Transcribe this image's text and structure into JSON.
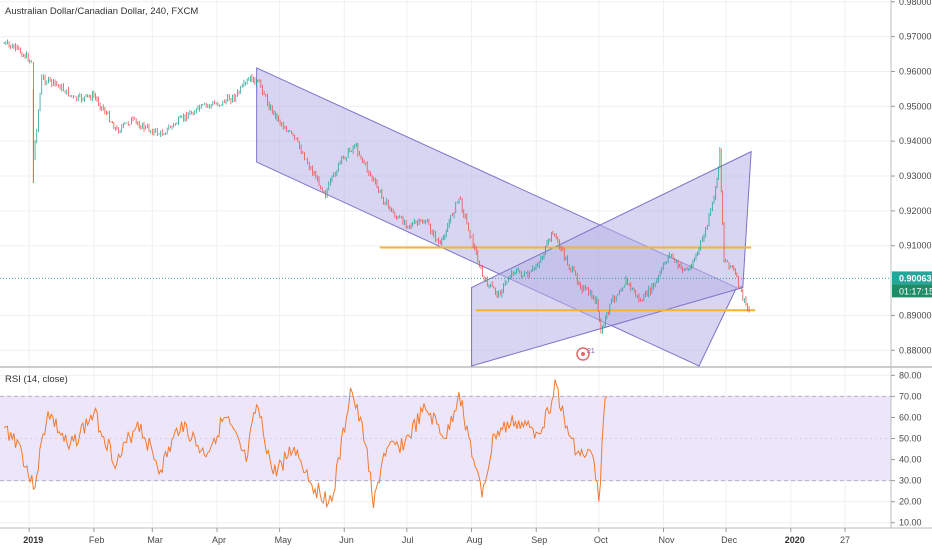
{
  "header": {
    "symbol_title": "Australian Dollar/Canadian Dollar, 240, FXCM",
    "rsi_title": "RSI (14, close)"
  },
  "price_panel": {
    "last_price": "0.90063",
    "countdown": "01:17:15",
    "event_badge": "21"
  },
  "colors": {
    "candle_up": "#26a69a",
    "candle_down": "#ef5350",
    "price_line": "#26a69a",
    "channel_fill": "#b7b3e6",
    "channel_stroke": "#7b74c9",
    "horizontal_level": "#f5b62a",
    "rsi_line": "#f27a2e",
    "rsi_band": "#ede6fb",
    "countdown_bg": "#1e8c66"
  },
  "chart_data": [
    {
      "type": "candlestick",
      "title": "Australian Dollar/Canadian Dollar, 240, FXCM",
      "x_axis_labels": [
        "2019",
        "Feb",
        "Mar",
        "Apr",
        "May",
        "Jun",
        "Jul",
        "Aug",
        "Sep",
        "Oct",
        "Nov",
        "Dec",
        "2020",
        "27"
      ],
      "y_axis_labels": [
        "0.98000",
        "0.97000",
        "0.96000",
        "0.95000",
        "0.94000",
        "0.93000",
        "0.92000",
        "0.91000",
        "0.89000",
        "0.88000"
      ],
      "ylim": [
        0.8755,
        0.9805
      ],
      "path_points": [
        [
          "2018-12-20",
          0.968
        ],
        [
          "2018-12-27",
          0.966
        ],
        [
          "2019-01-02",
          0.963
        ],
        [
          "2019-01-03",
          0.935
        ],
        [
          "2019-01-07",
          0.958
        ],
        [
          "2019-01-15",
          0.956
        ],
        [
          "2019-01-23",
          0.952
        ],
        [
          "2019-02-01",
          0.953
        ],
        [
          "2019-02-07",
          0.948
        ],
        [
          "2019-02-12",
          0.943
        ],
        [
          "2019-02-19",
          0.946
        ],
        [
          "2019-02-25",
          0.944
        ],
        [
          "2019-03-05",
          0.942
        ],
        [
          "2019-03-12",
          0.945
        ],
        [
          "2019-03-19",
          0.948
        ],
        [
          "2019-03-26",
          0.95
        ],
        [
          "2019-04-03",
          0.951
        ],
        [
          "2019-04-10",
          0.953
        ],
        [
          "2019-04-17",
          0.958
        ],
        [
          "2019-04-22",
          0.956
        ],
        [
          "2019-04-26",
          0.95
        ],
        [
          "2019-05-02",
          0.945
        ],
        [
          "2019-05-09",
          0.94
        ],
        [
          "2019-05-16",
          0.932
        ],
        [
          "2019-05-23",
          0.925
        ],
        [
          "2019-05-30",
          0.934
        ],
        [
          "2019-06-06",
          0.939
        ],
        [
          "2019-06-12",
          0.932
        ],
        [
          "2019-06-19",
          0.924
        ],
        [
          "2019-06-26",
          0.918
        ],
        [
          "2019-07-03",
          0.916
        ],
        [
          "2019-07-10",
          0.917
        ],
        [
          "2019-07-17",
          0.91
        ],
        [
          "2019-07-22",
          0.918
        ],
        [
          "2019-07-26",
          0.924
        ],
        [
          "2019-08-01",
          0.912
        ],
        [
          "2019-08-07",
          0.9
        ],
        [
          "2019-08-14",
          0.896
        ],
        [
          "2019-08-21",
          0.903
        ],
        [
          "2019-08-28",
          0.901
        ],
        [
          "2019-09-04",
          0.907
        ],
        [
          "2019-09-09",
          0.914
        ],
        [
          "2019-09-16",
          0.905
        ],
        [
          "2019-09-23",
          0.898
        ],
        [
          "2019-09-30",
          0.894
        ],
        [
          "2019-10-02",
          0.885
        ],
        [
          "2019-10-07",
          0.894
        ],
        [
          "2019-10-14",
          0.9
        ],
        [
          "2019-10-21",
          0.894
        ],
        [
          "2019-10-28",
          0.899
        ],
        [
          "2019-11-04",
          0.908
        ],
        [
          "2019-11-08",
          0.904
        ],
        [
          "2019-11-13",
          0.903
        ],
        [
          "2019-11-18",
          0.909
        ],
        [
          "2019-11-22",
          0.916
        ],
        [
          "2019-11-26",
          0.926
        ],
        [
          "2019-11-28",
          0.937
        ],
        [
          "2019-11-30",
          0.906
        ],
        [
          "2019-12-04",
          0.904
        ],
        [
          "2019-12-09",
          0.895
        ],
        [
          "2019-12-12",
          0.891
        ]
      ],
      "annotations": {
        "descending_channel": {
          "upper": [
            [
              "2019-04-20",
              0.961
            ],
            [
              "2019-12-06",
              0.898
            ]
          ],
          "lower": [
            [
              "2019-04-20",
              0.934
            ],
            [
              "2019-11-18",
              0.874
            ]
          ]
        },
        "ascending_channel": {
          "upper": [
            [
              "2019-08-01",
              0.898
            ],
            [
              "2019-12-13",
              0.937
            ]
          ],
          "lower": [
            [
              "2019-08-01",
              0.835
            ],
            [
              "2019-12-09",
              0.898
            ]
          ]
        },
        "resistance_level": {
          "value": 0.9095,
          "from": "2019-06-18",
          "to": "2019-12-13"
        },
        "support_level": {
          "value": 0.8915,
          "from": "2019-08-03",
          "to": "2019-12-15"
        },
        "last_price_line": 0.90063
      }
    },
    {
      "type": "line",
      "title": "RSI (14, close)",
      "y_axis_labels": [
        "80.00",
        "70.00",
        "60.00",
        "50.00",
        "40.00",
        "30.00",
        "20.00",
        "10.00"
      ],
      "ylim": [
        7.5,
        83.5
      ],
      "band": [
        30,
        70
      ],
      "path_points": [
        [
          "2018-12-20",
          55
        ],
        [
          "2018-12-27",
          48
        ],
        [
          "2019-01-03",
          26
        ],
        [
          "2019-01-10",
          63
        ],
        [
          "2019-01-20",
          45
        ],
        [
          "2019-02-01",
          62
        ],
        [
          "2019-02-12",
          38
        ],
        [
          "2019-02-22",
          58
        ],
        [
          "2019-03-05",
          35
        ],
        [
          "2019-03-15",
          58
        ],
        [
          "2019-03-26",
          42
        ],
        [
          "2019-04-05",
          60
        ],
        [
          "2019-04-15",
          39
        ],
        [
          "2019-04-20",
          66
        ],
        [
          "2019-04-28",
          33
        ],
        [
          "2019-05-08",
          46
        ],
        [
          "2019-05-18",
          26
        ],
        [
          "2019-05-26",
          20
        ],
        [
          "2019-06-02",
          60
        ],
        [
          "2019-06-04",
          74
        ],
        [
          "2019-06-12",
          45
        ],
        [
          "2019-06-15",
          17
        ],
        [
          "2019-06-20",
          43
        ],
        [
          "2019-06-30",
          48
        ],
        [
          "2019-07-10",
          64
        ],
        [
          "2019-07-20",
          50
        ],
        [
          "2019-07-26",
          72
        ],
        [
          "2019-08-02",
          40
        ],
        [
          "2019-08-06",
          22
        ],
        [
          "2019-08-12",
          52
        ],
        [
          "2019-08-22",
          58
        ],
        [
          "2019-09-01",
          53
        ],
        [
          "2019-09-07",
          62
        ],
        [
          "2019-09-10",
          78
        ],
        [
          "2019-09-15",
          55
        ],
        [
          "2019-09-22",
          42
        ],
        [
          "2019-09-28",
          42
        ],
        [
          "2019-10-01",
          20
        ],
        [
          "2019-10-04",
          69
        ],
        [
          "2019-10-05",
          70
        ]
      ]
    }
  ]
}
